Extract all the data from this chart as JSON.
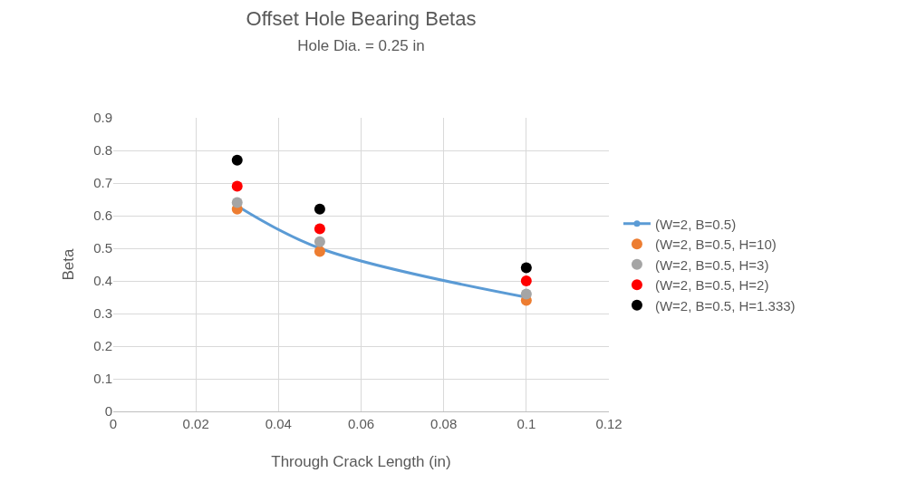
{
  "chart_data": {
    "type": "scatter",
    "title": "Offset Hole Bearing Betas",
    "subtitle": "Hole Dia. = 0.25 in",
    "xlabel": "Through Crack Length (in)",
    "ylabel": "Beta",
    "x": [
      0.03,
      0.05,
      0.1
    ],
    "series": [
      {
        "name": "(W=2, B=0.5)",
        "type": "line",
        "color": "#5b9bd5",
        "values": [
          0.63,
          0.5,
          0.35
        ]
      },
      {
        "name": "(W=2, B=0.5, H=10)",
        "color": "#ed7d31",
        "values": [
          0.62,
          0.49,
          0.34
        ]
      },
      {
        "name": "(W=2, B=0.5, H=3)",
        "color": "#a5a5a5",
        "values": [
          0.64,
          0.52,
          0.36
        ]
      },
      {
        "name": "(W=2, B=0.5, H=2)",
        "color": "#ff0000",
        "values": [
          0.69,
          0.56,
          0.4
        ]
      },
      {
        "name": "(W=2, B=0.5, H=1.333)",
        "color": "#000000",
        "values": [
          0.77,
          0.62,
          0.44
        ]
      }
    ],
    "xlim": [
      0,
      0.12
    ],
    "xticks": [
      0,
      0.02,
      0.04,
      0.06,
      0.08,
      0.1,
      0.12
    ],
    "ylim": [
      0,
      0.9
    ],
    "yticks": [
      0,
      0.1,
      0.2,
      0.3,
      0.4,
      0.5,
      0.6,
      0.7,
      0.8,
      0.9
    ],
    "grid": true,
    "legend": "right",
    "marker": "circle"
  }
}
